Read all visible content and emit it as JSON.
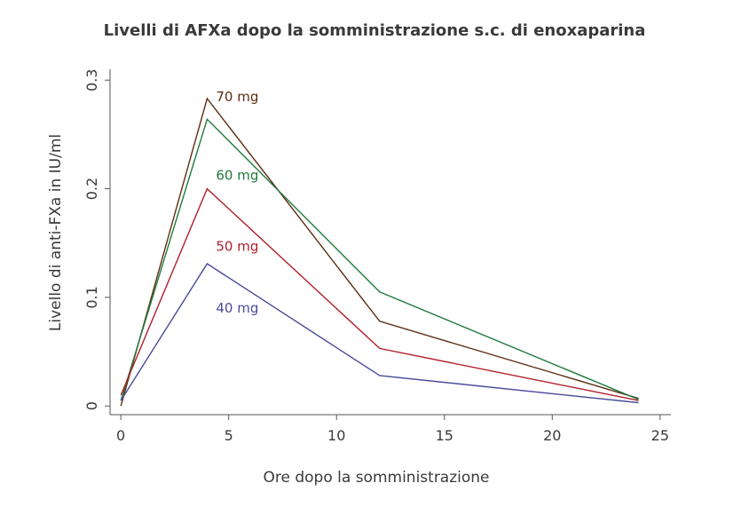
{
  "chart_data": {
    "type": "line",
    "title": "Livelli di AFXa dopo la somministrazione s.c. di enoxaparina",
    "xlabel": "Ore dopo la somministrazione",
    "ylabel": "Livello di anti-FXa in IU/ml",
    "xlim": [
      -0.5,
      25.5
    ],
    "ylim": [
      -0.008,
      0.31
    ],
    "x_ticks": [
      0,
      5,
      10,
      15,
      20,
      25
    ],
    "x_tick_labels": [
      "0",
      "5",
      "10",
      "15",
      "20",
      "25"
    ],
    "y_ticks": [
      0,
      0.1,
      0.2,
      0.3
    ],
    "y_tick_labels": [
      "0",
      "0.1",
      "0.2",
      "0.3"
    ],
    "grid": false,
    "legend": "inline labels",
    "x": [
      0,
      4,
      12,
      24
    ],
    "series": [
      {
        "name": "70 mg",
        "label": "70 mg",
        "color": "#5c2e12",
        "values": [
          0.0,
          0.283,
          0.078,
          0.007
        ]
      },
      {
        "name": "60 mg",
        "label": "60 mg",
        "color": "#1f7a3c",
        "values": [
          0.005,
          0.264,
          0.105,
          0.006
        ]
      },
      {
        "name": "50 mg",
        "label": "50 mg",
        "color": "#b01f2a",
        "values": [
          0.01,
          0.2,
          0.053,
          0.005
        ]
      },
      {
        "name": "40 mg",
        "label": "40 mg",
        "color": "#4a4a9a",
        "values": [
          0.005,
          0.131,
          0.028,
          0.003
        ]
      }
    ]
  }
}
